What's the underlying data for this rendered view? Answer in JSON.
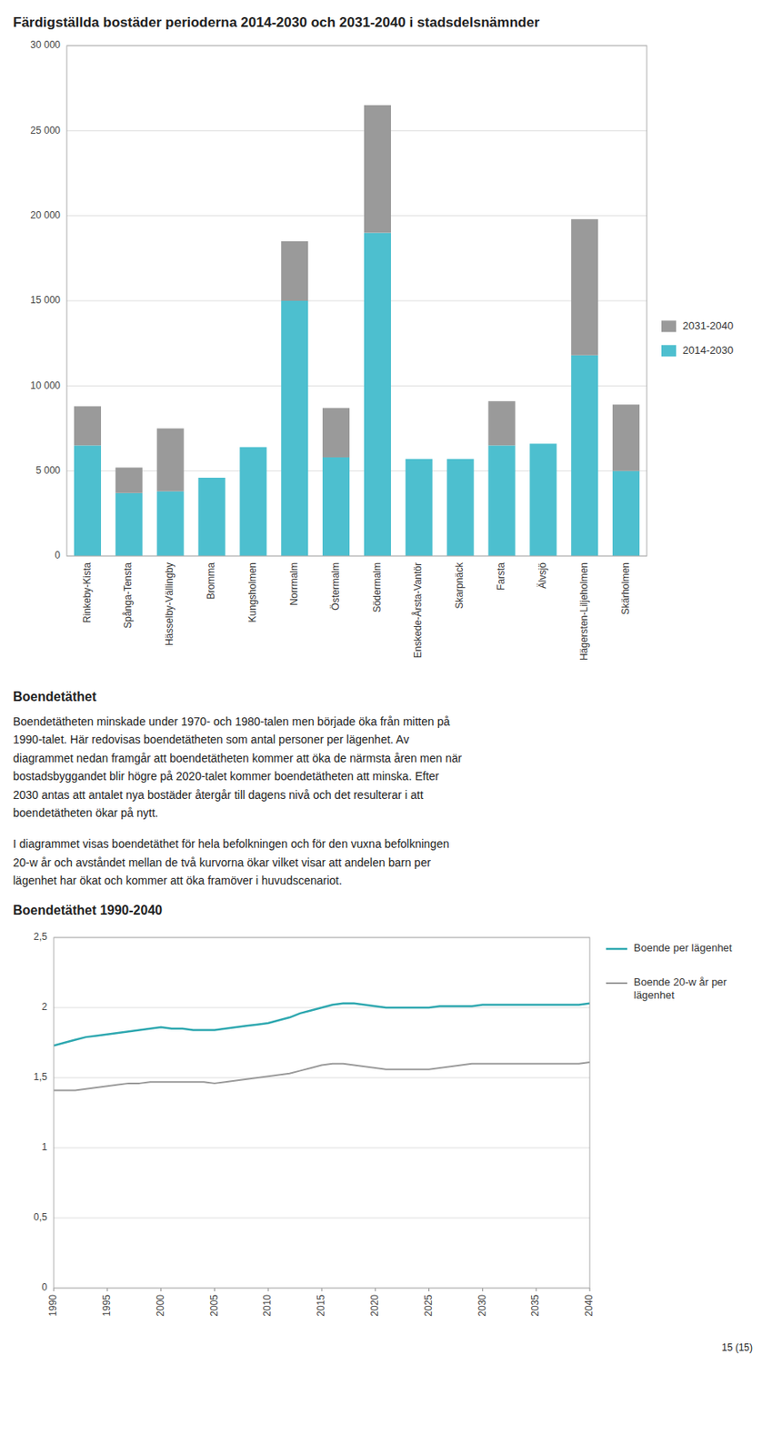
{
  "chart_data": [
    {
      "type": "bar",
      "title": "Färdigställda bostäder perioderna 2014-2030 och 2031-2040 i stadsdelsnämnder",
      "categories": [
        "Rinkeby-Kista",
        "Spånga-Tensta",
        "Hässelby-Vällingby",
        "Bromma",
        "Kungsholmen",
        "Norrmalm",
        "Östermalm",
        "Södermalm",
        "Enskede-Årsta-Vantör",
        "Skarpnäck",
        "Farsta",
        "Älvsjö",
        "Hägersten-Liljeholmen",
        "Skärholmen"
      ],
      "series": [
        {
          "name": "2014-2030",
          "color": "#4dbfcf",
          "values": [
            6500,
            3700,
            3800,
            4600,
            6400,
            15000,
            5800,
            19000,
            5700,
            5700,
            6500,
            6600,
            11800,
            5000
          ]
        },
        {
          "name": "2031-2040",
          "color": "#9a9a9a",
          "values": [
            2300,
            1500,
            3700,
            0,
            0,
            3500,
            2900,
            7500,
            0,
            0,
            2600,
            0,
            8000,
            3900
          ]
        }
      ],
      "stacked": true,
      "ylim": [
        0,
        30000
      ],
      "yticks": [
        0,
        {
          "value": 5000,
          "label": "5 000"
        },
        {
          "value": 10000,
          "label": "10 000"
        },
        {
          "value": 15000,
          "label": "15 000"
        },
        {
          "value": 20000,
          "label": "20 000"
        },
        {
          "value": 25000,
          "label": "25 000"
        },
        {
          "value": 30000,
          "label": "30 000"
        }
      ],
      "grid": true,
      "legend": "right"
    },
    {
      "type": "line",
      "title": "Boendetäthet 1990-2040",
      "x": [
        1990,
        1991,
        1992,
        1993,
        1994,
        1995,
        1996,
        1997,
        1998,
        1999,
        2000,
        2001,
        2002,
        2003,
        2004,
        2005,
        2006,
        2007,
        2008,
        2009,
        2010,
        2011,
        2012,
        2013,
        2014,
        2015,
        2016,
        2017,
        2018,
        2019,
        2020,
        2021,
        2022,
        2023,
        2024,
        2025,
        2026,
        2027,
        2028,
        2029,
        2030,
        2031,
        2032,
        2033,
        2034,
        2035,
        2036,
        2037,
        2038,
        2039,
        2040
      ],
      "series": [
        {
          "name": "Boende per lägenhet",
          "color": "#2fa8b0",
          "values": [
            1.73,
            1.75,
            1.77,
            1.79,
            1.8,
            1.81,
            1.82,
            1.83,
            1.84,
            1.85,
            1.86,
            1.85,
            1.85,
            1.84,
            1.84,
            1.84,
            1.85,
            1.86,
            1.87,
            1.88,
            1.89,
            1.91,
            1.93,
            1.96,
            1.98,
            2.0,
            2.02,
            2.03,
            2.03,
            2.02,
            2.01,
            2.0,
            2.0,
            2.0,
            2.0,
            2.0,
            2.01,
            2.01,
            2.01,
            2.01,
            2.02,
            2.02,
            2.02,
            2.02,
            2.02,
            2.02,
            2.02,
            2.02,
            2.02,
            2.02,
            2.03
          ]
        },
        {
          "name": "Boende 20-w år per\nlägenhet",
          "color": "#9a9a9a",
          "values": [
            1.41,
            1.41,
            1.41,
            1.42,
            1.43,
            1.44,
            1.45,
            1.46,
            1.46,
            1.47,
            1.47,
            1.47,
            1.47,
            1.47,
            1.47,
            1.46,
            1.47,
            1.48,
            1.49,
            1.5,
            1.51,
            1.52,
            1.53,
            1.55,
            1.57,
            1.59,
            1.6,
            1.6,
            1.59,
            1.58,
            1.57,
            1.56,
            1.56,
            1.56,
            1.56,
            1.56,
            1.57,
            1.58,
            1.59,
            1.6,
            1.6,
            1.6,
            1.6,
            1.6,
            1.6,
            1.6,
            1.6,
            1.6,
            1.6,
            1.6,
            1.61
          ]
        }
      ],
      "xlim": [
        1990,
        2040
      ],
      "xticks": [
        1990,
        1995,
        2000,
        2005,
        2010,
        2015,
        2020,
        2025,
        2030,
        2035,
        2040
      ],
      "ylim": [
        0,
        2.5
      ],
      "yticks": [
        0,
        {
          "value": 0.5,
          "label": "0,5"
        },
        1,
        {
          "value": 1.5,
          "label": "1,5"
        },
        2,
        {
          "value": 2.5,
          "label": "2,5"
        }
      ],
      "grid": true,
      "legend": "right"
    }
  ],
  "section_title": "Boendetäthet",
  "paragraphs": [
    "Boendetätheten minskade under 1970- och 1980-talen men började öka från mitten på\n1990-talet. Här redovisas boendetätheten som antal personer per lägenhet. Av\ndiagrammet nedan framgår att boendetätheten kommer att öka de närmsta åren men när\nbostadsbyggandet blir högre på 2020-talet kommer boendetätheten att minska. Efter\n2030 antas att antalet nya bostäder återgår till dagens nivå och det resulterar i att\nboendetätheten ökar på nytt.",
    "I diagrammet visas boendetäthet för hela befolkningen och för den vuxna befolkningen\n20-w år och avståndet mellan de två kurvorna ökar vilket visar att andelen barn per\nlägenhet har ökat och kommer att öka framöver i huvudscenariot."
  ],
  "page_number": "15 (15)"
}
